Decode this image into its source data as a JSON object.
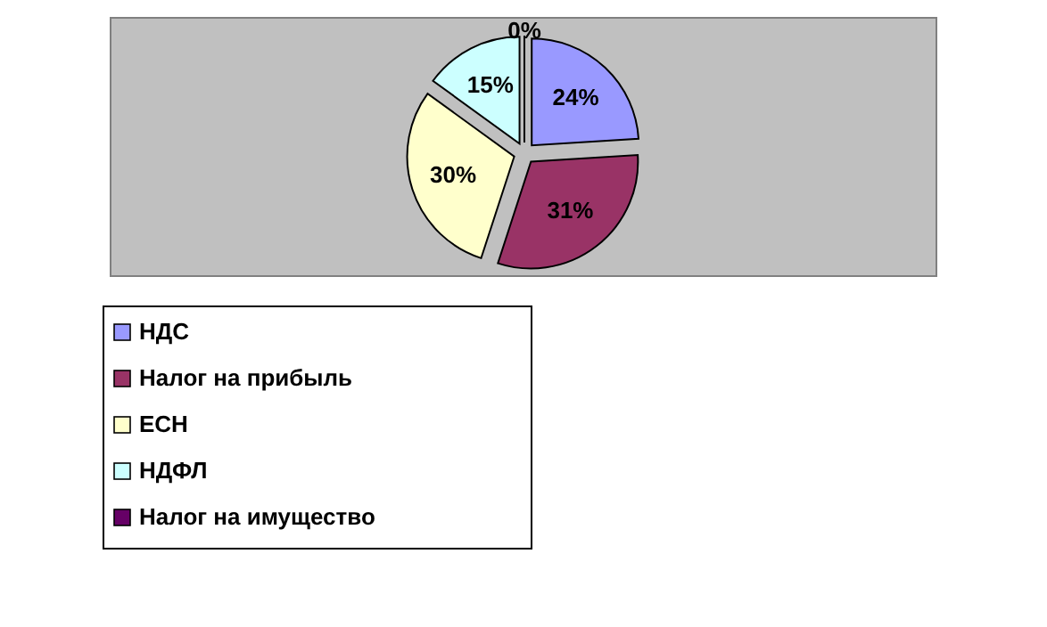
{
  "chart_data": {
    "type": "pie",
    "categories": [
      "НДС",
      "Налог на прибыль",
      "ЕСН",
      "НДФЛ",
      "Налог на имущество"
    ],
    "values": [
      24,
      31,
      30,
      15,
      0
    ],
    "value_labels": [
      "24%",
      "31%",
      "30%",
      "15%",
      "0%"
    ],
    "colors": [
      "#9999ff",
      "#993366",
      "#ffffcc",
      "#ccffff",
      "#660066"
    ],
    "legend": "bottom left"
  }
}
